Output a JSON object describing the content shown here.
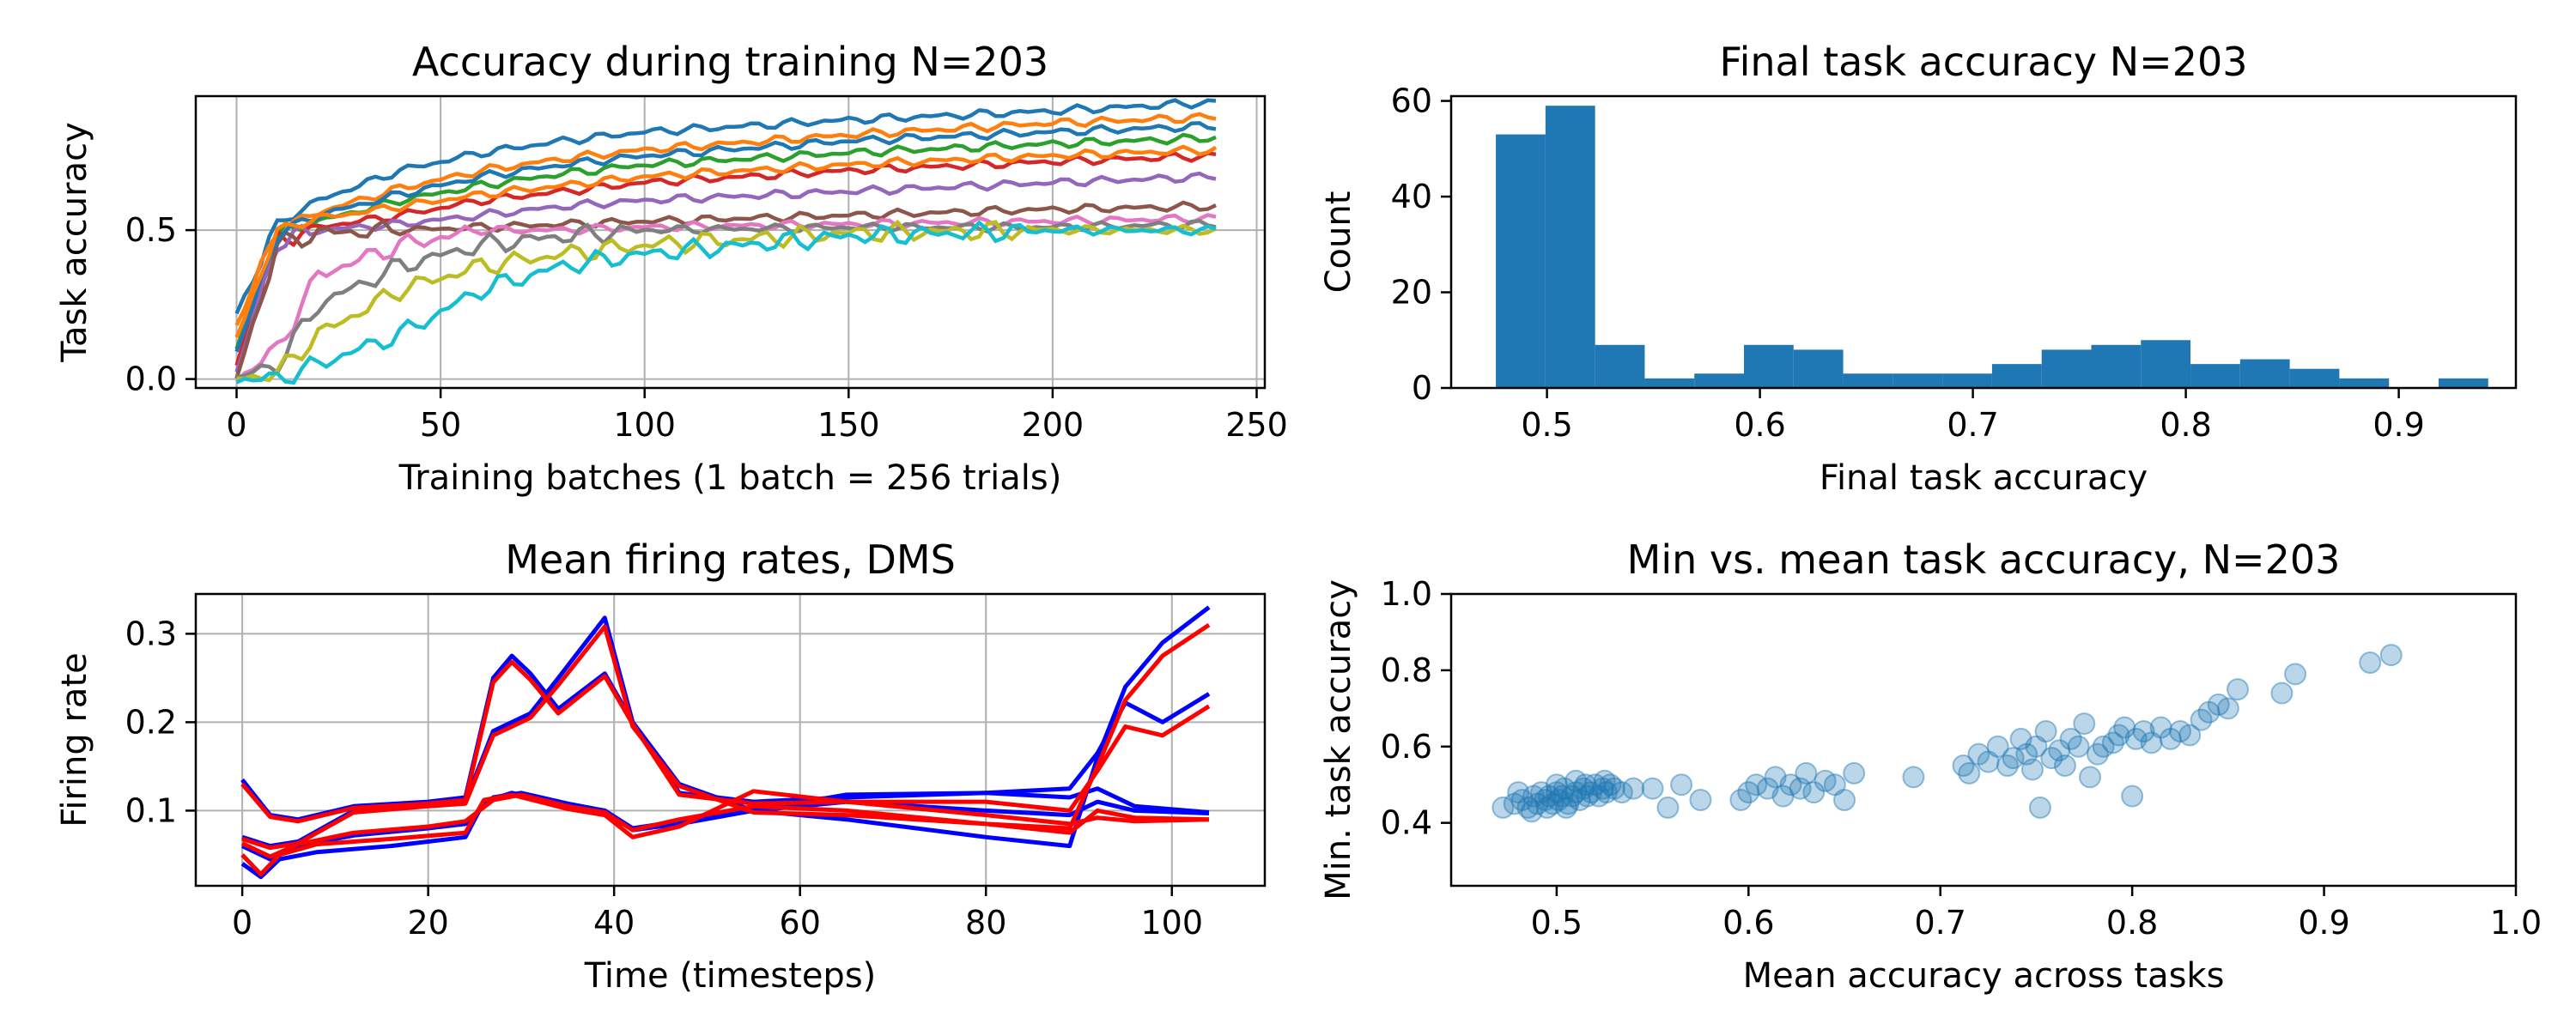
{
  "chart_data": [
    {
      "type": "line",
      "title": "Accuracy during training N=203",
      "xlabel": "Training batches (1 batch = 256 trials)",
      "ylabel": "Task accuracy",
      "xlim": [
        -10,
        252
      ],
      "ylim": [
        -0.03,
        0.95
      ],
      "xticks": [
        0,
        50,
        100,
        150,
        200,
        250
      ],
      "yticks": [
        0.0,
        0.5
      ],
      "grid": true,
      "n_runs": 203,
      "colors": [
        "#1f77b4",
        "#ff7f0e",
        "#2ca02c",
        "#d62728",
        "#9467bd",
        "#8c564b",
        "#e377c2",
        "#7f7f7f",
        "#bcbd22",
        "#17becf"
      ],
      "series_note": "",
      "series": [
        {
          "x": [
            0,
            10,
            20,
            40,
            60,
            80,
            100,
            150,
            200,
            240
          ],
          "values": [
            0.22,
            0.52,
            0.6,
            0.7,
            0.76,
            0.8,
            0.83,
            0.87,
            0.9,
            0.93
          ]
        },
        {
          "x": [
            0,
            10,
            20,
            40,
            60,
            80,
            100,
            150,
            200,
            240
          ],
          "values": [
            0.18,
            0.5,
            0.56,
            0.64,
            0.7,
            0.74,
            0.77,
            0.82,
            0.86,
            0.88
          ]
        },
        {
          "x": [
            0,
            10,
            20,
            40,
            60,
            80,
            100,
            150,
            200,
            240
          ],
          "values": [
            0.1,
            0.48,
            0.53,
            0.6,
            0.65,
            0.69,
            0.72,
            0.76,
            0.79,
            0.81
          ]
        },
        {
          "x": [
            0,
            10,
            20,
            40,
            60,
            80,
            100,
            150,
            200,
            240
          ],
          "values": [
            0.05,
            0.47,
            0.51,
            0.55,
            0.6,
            0.63,
            0.66,
            0.7,
            0.73,
            0.75
          ]
        },
        {
          "x": [
            0,
            10,
            20,
            40,
            60,
            80,
            100,
            150,
            200,
            240
          ],
          "values": [
            0.02,
            0.46,
            0.5,
            0.52,
            0.55,
            0.58,
            0.6,
            0.63,
            0.66,
            0.68
          ]
        },
        {
          "x": [
            0,
            10,
            20,
            40,
            60,
            80,
            100,
            150,
            200,
            240
          ],
          "values": [
            0.0,
            0.45,
            0.49,
            0.5,
            0.51,
            0.52,
            0.53,
            0.55,
            0.57,
            0.58
          ]
        },
        {
          "x": [
            0,
            10,
            20,
            40,
            60,
            80,
            100,
            150,
            200,
            240
          ],
          "values": [
            0.0,
            0.1,
            0.35,
            0.45,
            0.5,
            0.5,
            0.51,
            0.52,
            0.53,
            0.54
          ]
        },
        {
          "x": [
            0,
            10,
            20,
            40,
            60,
            80,
            100,
            150,
            200,
            240
          ],
          "values": [
            0.0,
            0.05,
            0.25,
            0.38,
            0.45,
            0.48,
            0.5,
            0.51,
            0.51,
            0.52
          ]
        },
        {
          "x": [
            0,
            10,
            20,
            40,
            60,
            80,
            100,
            150,
            200,
            240
          ],
          "values": [
            0.0,
            0.02,
            0.15,
            0.3,
            0.38,
            0.42,
            0.45,
            0.49,
            0.5,
            0.5
          ]
        },
        {
          "x": [
            0,
            10,
            20,
            40,
            60,
            80,
            100,
            150,
            200,
            240
          ],
          "values": [
            0.0,
            0.0,
            0.05,
            0.15,
            0.3,
            0.38,
            0.42,
            0.48,
            0.5,
            0.5
          ]
        },
        {
          "x": [
            0,
            10,
            20,
            40,
            60,
            80,
            100,
            150,
            200,
            240
          ],
          "values": [
            0.08,
            0.49,
            0.55,
            0.62,
            0.68,
            0.72,
            0.75,
            0.8,
            0.83,
            0.85
          ]
        },
        {
          "x": [
            0,
            10,
            20,
            40,
            60,
            80,
            100,
            150,
            200,
            240
          ],
          "values": [
            0.14,
            0.5,
            0.54,
            0.58,
            0.62,
            0.65,
            0.68,
            0.72,
            0.75,
            0.77
          ]
        }
      ]
    },
    {
      "type": "bar",
      "title": "Final task accuracy N=203",
      "xlabel": "Final task accuracy",
      "ylabel": "Count",
      "xlim": [
        0.455,
        0.955
      ],
      "ylim": [
        0,
        61
      ],
      "xticks": [
        0.5,
        0.6,
        0.7,
        0.8,
        0.9
      ],
      "yticks": [
        0,
        20,
        40,
        60
      ],
      "grid": false,
      "bar_color": "#1f77b4",
      "bin_edges": [
        0.476,
        0.4993,
        0.5226,
        0.5459,
        0.5692,
        0.5925,
        0.6158,
        0.6391,
        0.6624,
        0.6857,
        0.709,
        0.7323,
        0.7556,
        0.7789,
        0.8022,
        0.8255,
        0.8488,
        0.8721,
        0.8954,
        0.9187,
        0.942
      ],
      "values": [
        53,
        59,
        9,
        2,
        3,
        9,
        8,
        3,
        3,
        3,
        5,
        8,
        9,
        10,
        5,
        6,
        4,
        2,
        0,
        2
      ]
    },
    {
      "type": "line",
      "title": "Mean firing rates, DMS",
      "xlabel": "Time (timesteps)",
      "ylabel": "Firing rate",
      "xlim": [
        -5,
        110
      ],
      "ylim": [
        0.015,
        0.345
      ],
      "xticks": [
        0,
        20,
        40,
        60,
        80,
        100
      ],
      "yticks": [
        0.1,
        0.2,
        0.3
      ],
      "grid": true,
      "series": [
        {
          "color": "#0000ff",
          "x": [
            0,
            3,
            6,
            12,
            20,
            24,
            27,
            29,
            31,
            34,
            39,
            42,
            47,
            55,
            65,
            80,
            89,
            92,
            95,
            99,
            104
          ],
          "values": [
            0.135,
            0.095,
            0.09,
            0.105,
            0.11,
            0.115,
            0.25,
            0.275,
            0.255,
            0.215,
            0.255,
            0.2,
            0.12,
            0.11,
            0.115,
            0.12,
            0.125,
            0.165,
            0.222,
            0.2,
            0.232
          ]
        },
        {
          "color": "#0000ff",
          "x": [
            0,
            3,
            6,
            12,
            20,
            24,
            27,
            29,
            31,
            34,
            39,
            42,
            47,
            55,
            65,
            80,
            89,
            92,
            95,
            99,
            104
          ],
          "values": [
            0.07,
            0.06,
            0.065,
            0.1,
            0.108,
            0.11,
            0.19,
            0.2,
            0.21,
            0.25,
            0.318,
            0.2,
            0.13,
            0.1,
            0.09,
            0.07,
            0.06,
            0.16,
            0.24,
            0.29,
            0.33
          ]
        },
        {
          "color": "#0000ff",
          "x": [
            0,
            2,
            4,
            8,
            16,
            24,
            26,
            29,
            35,
            39,
            42,
            47,
            55,
            65,
            80,
            89,
            92,
            96,
            104
          ],
          "values": [
            0.04,
            0.025,
            0.045,
            0.053,
            0.06,
            0.07,
            0.11,
            0.12,
            0.105,
            0.1,
            0.078,
            0.085,
            0.1,
            0.118,
            0.12,
            0.115,
            0.125,
            0.105,
            0.098
          ]
        },
        {
          "color": "#0000ff",
          "x": [
            0,
            3,
            6,
            12,
            20,
            24,
            27,
            30,
            35,
            39,
            42,
            47,
            55,
            65,
            80,
            89,
            92,
            96,
            104
          ],
          "values": [
            0.06,
            0.045,
            0.06,
            0.072,
            0.08,
            0.085,
            0.115,
            0.12,
            0.108,
            0.1,
            0.08,
            0.088,
            0.1,
            0.11,
            0.1,
            0.095,
            0.11,
            0.1,
            0.097
          ]
        },
        {
          "color": "#ff0000",
          "x": [
            0,
            3,
            6,
            12,
            20,
            24,
            27,
            29,
            31,
            34,
            39,
            42,
            47,
            55,
            65,
            80,
            89,
            92,
            95,
            99,
            104
          ],
          "values": [
            0.13,
            0.093,
            0.088,
            0.103,
            0.108,
            0.112,
            0.245,
            0.268,
            0.248,
            0.21,
            0.252,
            0.198,
            0.118,
            0.108,
            0.11,
            0.11,
            0.1,
            0.145,
            0.195,
            0.185,
            0.218
          ]
        },
        {
          "color": "#ff0000",
          "x": [
            0,
            3,
            6,
            12,
            20,
            24,
            27,
            29,
            31,
            34,
            39,
            42,
            47,
            55,
            65,
            80,
            89,
            92,
            95,
            99,
            104
          ],
          "values": [
            0.068,
            0.058,
            0.063,
            0.098,
            0.105,
            0.108,
            0.185,
            0.195,
            0.205,
            0.242,
            0.308,
            0.195,
            0.128,
            0.098,
            0.095,
            0.085,
            0.08,
            0.15,
            0.225,
            0.275,
            0.31
          ]
        },
        {
          "color": "#ff0000",
          "x": [
            0,
            2,
            4,
            8,
            16,
            24,
            26,
            29,
            35,
            39,
            42,
            47,
            55,
            65,
            80,
            89,
            92,
            96,
            104
          ],
          "values": [
            0.05,
            0.028,
            0.05,
            0.062,
            0.068,
            0.075,
            0.112,
            0.118,
            0.102,
            0.095,
            0.07,
            0.082,
            0.122,
            0.11,
            0.095,
            0.085,
            0.092,
            0.088,
            0.09
          ]
        },
        {
          "color": "#ff0000",
          "x": [
            0,
            3,
            6,
            12,
            20,
            24,
            27,
            30,
            35,
            39,
            42,
            47,
            55,
            65,
            80,
            89,
            92,
            96,
            104
          ],
          "values": [
            0.063,
            0.048,
            0.062,
            0.075,
            0.082,
            0.088,
            0.112,
            0.118,
            0.105,
            0.098,
            0.078,
            0.09,
            0.105,
            0.1,
            0.085,
            0.075,
            0.1,
            0.092,
            0.09
          ]
        }
      ]
    },
    {
      "type": "scatter",
      "title": "Min vs. mean task accuracy, N=203",
      "xlabel": "Mean accuracy across tasks",
      "ylabel": "Min. task accuracy",
      "xlim": [
        0.445,
        1.0
      ],
      "ylim": [
        0.235,
        1.0
      ],
      "xticks": [
        0.5,
        0.6,
        0.7,
        0.8,
        0.9,
        1.0
      ],
      "yticks": [
        0.4,
        0.6,
        0.8,
        1.0
      ],
      "grid": false,
      "marker_color": "#1f77b4",
      "marker_alpha": 0.3,
      "points": [
        [
          0.472,
          0.44
        ],
        [
          0.478,
          0.45
        ],
        [
          0.482,
          0.46
        ],
        [
          0.485,
          0.44
        ],
        [
          0.488,
          0.47
        ],
        [
          0.49,
          0.45
        ],
        [
          0.492,
          0.48
        ],
        [
          0.494,
          0.46
        ],
        [
          0.496,
          0.47
        ],
        [
          0.498,
          0.45
        ],
        [
          0.5,
          0.48
        ],
        [
          0.501,
          0.46
        ],
        [
          0.503,
          0.47
        ],
        [
          0.504,
          0.49
        ],
        [
          0.506,
          0.45
        ],
        [
          0.508,
          0.47
        ],
        [
          0.51,
          0.48
        ],
        [
          0.512,
          0.46
        ],
        [
          0.514,
          0.49
        ],
        [
          0.516,
          0.47
        ],
        [
          0.518,
          0.48
        ],
        [
          0.52,
          0.5
        ],
        [
          0.522,
          0.47
        ],
        [
          0.524,
          0.49
        ],
        [
          0.526,
          0.48
        ],
        [
          0.528,
          0.5
        ],
        [
          0.53,
          0.49
        ],
        [
          0.534,
          0.48
        ],
        [
          0.54,
          0.49
        ],
        [
          0.487,
          0.43
        ],
        [
          0.495,
          0.44
        ],
        [
          0.505,
          0.44
        ],
        [
          0.515,
          0.5
        ],
        [
          0.48,
          0.48
        ],
        [
          0.5,
          0.5
        ],
        [
          0.51,
          0.51
        ],
        [
          0.525,
          0.51
        ],
        [
          0.55,
          0.49
        ],
        [
          0.558,
          0.44
        ],
        [
          0.565,
          0.5
        ],
        [
          0.575,
          0.46
        ],
        [
          0.596,
          0.46
        ],
        [
          0.6,
          0.48
        ],
        [
          0.604,
          0.5
        ],
        [
          0.61,
          0.49
        ],
        [
          0.614,
          0.52
        ],
        [
          0.618,
          0.47
        ],
        [
          0.622,
          0.5
        ],
        [
          0.627,
          0.49
        ],
        [
          0.63,
          0.53
        ],
        [
          0.634,
          0.48
        ],
        [
          0.64,
          0.51
        ],
        [
          0.645,
          0.5
        ],
        [
          0.65,
          0.46
        ],
        [
          0.655,
          0.53
        ],
        [
          0.686,
          0.52
        ],
        [
          0.712,
          0.55
        ],
        [
          0.715,
          0.53
        ],
        [
          0.72,
          0.58
        ],
        [
          0.725,
          0.56
        ],
        [
          0.73,
          0.6
        ],
        [
          0.735,
          0.55
        ],
        [
          0.738,
          0.57
        ],
        [
          0.742,
          0.62
        ],
        [
          0.745,
          0.58
        ],
        [
          0.748,
          0.54
        ],
        [
          0.75,
          0.6
        ],
        [
          0.752,
          0.44
        ],
        [
          0.755,
          0.64
        ],
        [
          0.758,
          0.57
        ],
        [
          0.762,
          0.59
        ],
        [
          0.765,
          0.55
        ],
        [
          0.768,
          0.62
        ],
        [
          0.772,
          0.6
        ],
        [
          0.775,
          0.66
        ],
        [
          0.778,
          0.52
        ],
        [
          0.782,
          0.58
        ],
        [
          0.785,
          0.6
        ],
        [
          0.79,
          0.61
        ],
        [
          0.793,
          0.63
        ],
        [
          0.796,
          0.65
        ],
        [
          0.8,
          0.47
        ],
        [
          0.802,
          0.62
        ],
        [
          0.806,
          0.64
        ],
        [
          0.81,
          0.61
        ],
        [
          0.815,
          0.65
        ],
        [
          0.82,
          0.62
        ],
        [
          0.825,
          0.64
        ],
        [
          0.83,
          0.63
        ],
        [
          0.836,
          0.67
        ],
        [
          0.84,
          0.69
        ],
        [
          0.845,
          0.71
        ],
        [
          0.85,
          0.7
        ],
        [
          0.855,
          0.75
        ],
        [
          0.878,
          0.74
        ],
        [
          0.885,
          0.79
        ],
        [
          0.924,
          0.82
        ],
        [
          0.935,
          0.84
        ]
      ]
    }
  ]
}
